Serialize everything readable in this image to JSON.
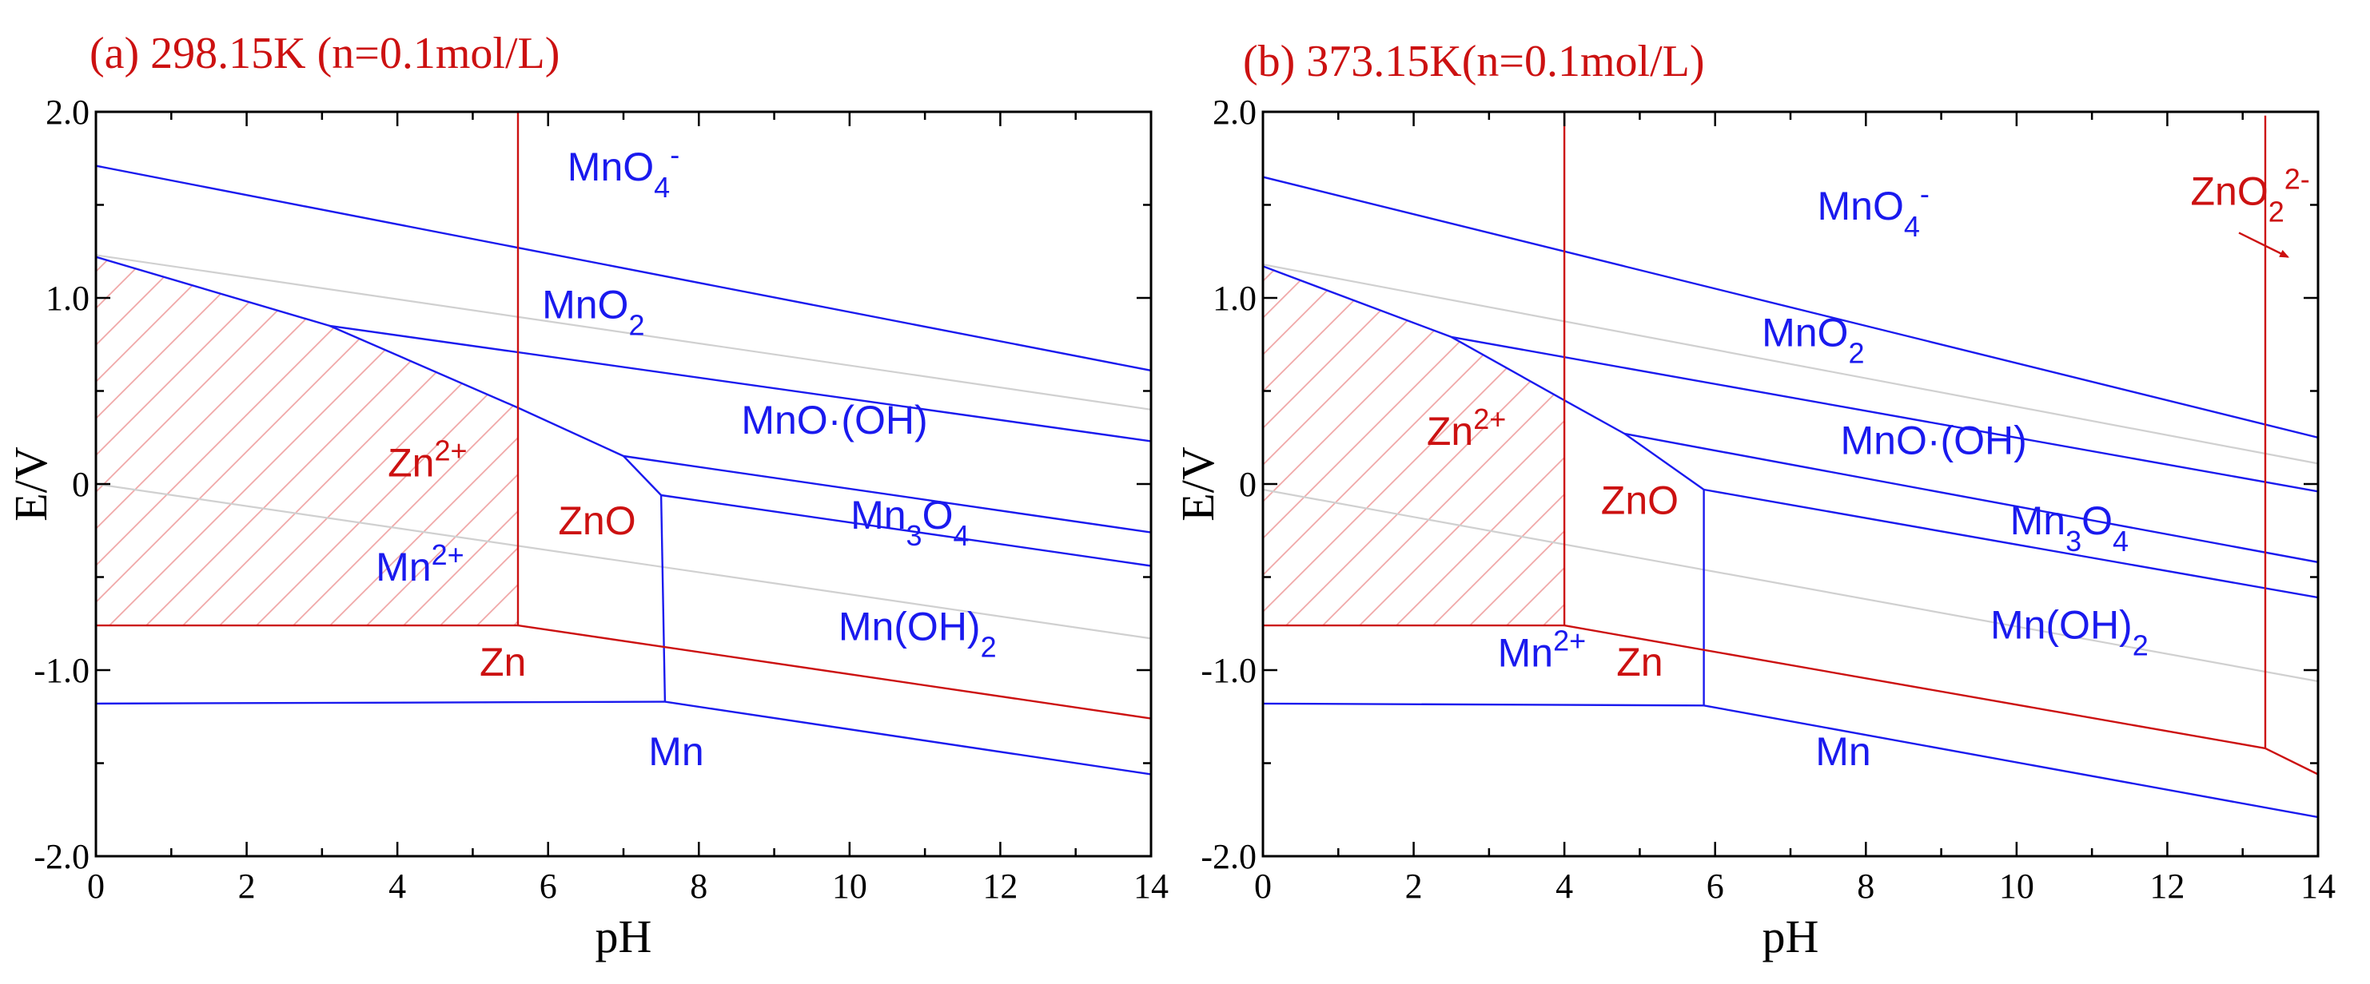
{
  "colors": {
    "blue": "#1a1aee",
    "red": "#cc1111",
    "grey": "#d0d0d0",
    "hatch": "#f0a8a8",
    "axis": "#000000"
  },
  "chart_data": [
    {
      "type": "line",
      "title": "(a) 298.15K (n=0.1mol/L)",
      "xlabel": "pH",
      "ylabel": "E/V",
      "xlim": [
        0,
        14
      ],
      "ylim": [
        -2.0,
        2.0
      ],
      "xticks": [
        0,
        2,
        4,
        6,
        8,
        10,
        12,
        14
      ],
      "xtick_labels": [
        "0",
        "2",
        "4",
        "6",
        "8",
        "10",
        "12",
        "14"
      ],
      "yticks": [
        2.0,
        1.0,
        0,
        -1.0,
        -2.0
      ],
      "ytick_labels": [
        "2.0",
        "1.0",
        "0",
        "-1.0",
        "-2.0"
      ],
      "series": [
        {
          "name": "MnO4-/MnO2",
          "color": "blue",
          "points": [
            [
              0,
              1.71
            ],
            [
              14,
              0.61
            ]
          ]
        },
        {
          "name": "MnO2/Mn2+",
          "color": "blue",
          "points": [
            [
              0,
              1.22
            ],
            [
              3.1,
              0.85
            ],
            [
              5.6,
              0.41
            ],
            [
              7.0,
              0.15
            ],
            [
              7.5,
              -0.06
            ]
          ]
        },
        {
          "name": "MnO2/MnO(OH)",
          "color": "blue",
          "points": [
            [
              3.1,
              0.85
            ],
            [
              14,
              0.23
            ]
          ]
        },
        {
          "name": "MnO(OH)/Mn3O4",
          "color": "blue",
          "points": [
            [
              7.0,
              0.15
            ],
            [
              14,
              -0.26
            ]
          ]
        },
        {
          "name": "Mn3O4/Mn(OH)2",
          "color": "blue",
          "points": [
            [
              7.5,
              -0.06
            ],
            [
              14,
              -0.44
            ]
          ]
        },
        {
          "name": "Mn2+/Mn(OH)2",
          "color": "blue",
          "points": [
            [
              7.5,
              -0.06
            ],
            [
              7.55,
              -1.17
            ]
          ]
        },
        {
          "name": "Mn2+/Mn",
          "color": "blue",
          "points": [
            [
              0,
              -1.18
            ],
            [
              7.55,
              -1.17
            ]
          ]
        },
        {
          "name": "Mn(OH)2/Mn",
          "color": "blue",
          "points": [
            [
              7.55,
              -1.17
            ],
            [
              14,
              -1.56
            ]
          ]
        },
        {
          "name": "Zn2+/ZnO",
          "color": "red",
          "points": [
            [
              5.6,
              2.0
            ],
            [
              5.6,
              -0.76
            ]
          ]
        },
        {
          "name": "Zn2+/Zn",
          "color": "red",
          "points": [
            [
              0,
              -0.76
            ],
            [
              5.6,
              -0.76
            ]
          ]
        },
        {
          "name": "ZnO/Zn",
          "color": "red",
          "points": [
            [
              5.6,
              -0.76
            ],
            [
              14,
              -1.26
            ]
          ]
        },
        {
          "name": "O2/H2O",
          "color": "grey",
          "points": [
            [
              0,
              1.23
            ],
            [
              14,
              0.4
            ]
          ]
        },
        {
          "name": "H+/H2",
          "color": "grey",
          "points": [
            [
              0,
              0
            ],
            [
              14,
              -0.83
            ]
          ]
        }
      ],
      "hatch_region": [
        [
          0,
          -0.76
        ],
        [
          5.6,
          -0.76
        ],
        [
          5.6,
          0.41
        ],
        [
          3.1,
          0.85
        ],
        [
          0,
          1.22
        ]
      ],
      "labels": [
        {
          "text": "MnO",
          "sub": "4",
          "sup": "-",
          "color": "blue",
          "x": 7.0,
          "y": 1.63
        },
        {
          "text": "MnO",
          "sub": "2",
          "sup": "",
          "color": "blue",
          "x": 6.6,
          "y": 0.89
        },
        {
          "text": "MnO·(OH)",
          "sub": "",
          "sup": "",
          "color": "blue",
          "x": 9.8,
          "y": 0.27
        },
        {
          "text": "Mn",
          "sub": "3",
          "sup": "",
          "suffix": "O",
          "sub2": "4",
          "color": "blue",
          "x": 10.8,
          "y": -0.24
        },
        {
          "text": "Mn(OH)",
          "sub": "2",
          "sup": "",
          "color": "blue",
          "x": 10.9,
          "y": -0.84
        },
        {
          "text": "Zn",
          "sub": "",
          "sup": "2+",
          "color": "red",
          "x": 4.4,
          "y": 0.04
        },
        {
          "text": "Mn",
          "sub": "",
          "sup": "2+",
          "color": "blue",
          "x": 4.3,
          "y": -0.52
        },
        {
          "text": "ZnO",
          "sub": "",
          "sup": "",
          "color": "red",
          "x": 6.65,
          "y": -0.27
        },
        {
          "text": "Zn",
          "sub": "",
          "sup": "",
          "color": "red",
          "x": 5.4,
          "y": -1.03
        },
        {
          "text": "Mn",
          "sub": "",
          "sup": "",
          "color": "blue",
          "x": 7.7,
          "y": -1.51
        }
      ]
    },
    {
      "type": "line",
      "title": "(b) 373.15K(n=0.1mol/L)",
      "xlabel": "pH",
      "ylabel": "E/V",
      "xlim": [
        0,
        14
      ],
      "ylim": [
        -2.0,
        2.0
      ],
      "xticks": [
        0,
        2,
        4,
        6,
        8,
        10,
        12,
        14
      ],
      "xtick_labels": [
        "0",
        "2",
        "4",
        "6",
        "8",
        "10",
        "12",
        "14"
      ],
      "yticks": [
        2.0,
        1.0,
        0,
        -1.0,
        -2.0
      ],
      "ytick_labels": [
        "2.0",
        "1.0",
        "0",
        "-1.0",
        "-2.0"
      ],
      "series": [
        {
          "name": "MnO4-/MnO2",
          "color": "blue",
          "points": [
            [
              0,
              1.65
            ],
            [
              14,
              0.25
            ]
          ]
        },
        {
          "name": "MnO2/Mn2+",
          "color": "blue",
          "points": [
            [
              0,
              1.17
            ],
            [
              2.5,
              0.79
            ],
            [
              4.0,
              0.45
            ],
            [
              4.8,
              0.27
            ],
            [
              5.85,
              -0.03
            ]
          ]
        },
        {
          "name": "MnO2/MnO(OH)",
          "color": "blue",
          "points": [
            [
              2.5,
              0.79
            ],
            [
              14,
              -0.04
            ]
          ]
        },
        {
          "name": "MnO(OH)/Mn3O4",
          "color": "blue",
          "points": [
            [
              4.8,
              0.27
            ],
            [
              14,
              -0.42
            ]
          ]
        },
        {
          "name": "Mn3O4/Mn(OH)2",
          "color": "blue",
          "points": [
            [
              5.85,
              -0.03
            ],
            [
              14,
              -0.61
            ]
          ]
        },
        {
          "name": "Mn2+/Mn(OH)2",
          "color": "blue",
          "points": [
            [
              5.85,
              -0.03
            ],
            [
              5.85,
              -1.19
            ]
          ]
        },
        {
          "name": "Mn2+/Mn",
          "color": "blue",
          "points": [
            [
              0,
              -1.18
            ],
            [
              5.85,
              -1.19
            ]
          ]
        },
        {
          "name": "Mn(OH)2/Mn",
          "color": "blue",
          "points": [
            [
              5.85,
              -1.19
            ],
            [
              14,
              -1.79
            ]
          ]
        },
        {
          "name": "Zn2+/ZnO",
          "color": "red",
          "points": [
            [
              4.0,
              2.0
            ],
            [
              4.0,
              -0.76
            ]
          ]
        },
        {
          "name": "Zn2+/Zn",
          "color": "red",
          "points": [
            [
              0,
              -0.76
            ],
            [
              4.0,
              -0.76
            ]
          ]
        },
        {
          "name": "ZnO/Zn",
          "color": "red",
          "points": [
            [
              4.0,
              -0.76
            ],
            [
              13.3,
              -1.42
            ]
          ]
        },
        {
          "name": "ZnO/ZnO2 2-",
          "color": "red",
          "points": [
            [
              13.3,
              1.98
            ],
            [
              13.3,
              -1.42
            ]
          ]
        },
        {
          "name": "ZnO2 2-/Zn",
          "color": "red",
          "points": [
            [
              13.3,
              -1.42
            ],
            [
              14,
              -1.56
            ]
          ]
        },
        {
          "name": "O2/H2O",
          "color": "grey",
          "points": [
            [
              0,
              1.18
            ],
            [
              14,
              0.11
            ]
          ]
        },
        {
          "name": "H+/H2",
          "color": "grey",
          "points": [
            [
              0,
              -0.03
            ],
            [
              14,
              -1.06
            ]
          ]
        }
      ],
      "hatch_region": [
        [
          0,
          -0.76
        ],
        [
          4.0,
          -0.76
        ],
        [
          4.0,
          0.45
        ],
        [
          2.5,
          0.79
        ],
        [
          0,
          1.17
        ]
      ],
      "arrow": {
        "from": [
          12.95,
          1.35
        ],
        "to": [
          13.6,
          1.22
        ],
        "color": "red"
      },
      "labels": [
        {
          "text": "MnO",
          "sub": "4",
          "sup": "-",
          "color": "blue",
          "x": 8.1,
          "y": 1.42
        },
        {
          "text": "ZnO",
          "sub": "2",
          "sup": "2-",
          "color": "red",
          "x": 13.1,
          "y": 1.5
        },
        {
          "text": "MnO",
          "sub": "2",
          "sup": "",
          "color": "blue",
          "x": 7.3,
          "y": 0.74
        },
        {
          "text": "MnO·(OH)",
          "sub": "",
          "sup": "",
          "color": "blue",
          "x": 8.9,
          "y": 0.16
        },
        {
          "text": "Mn",
          "sub": "3",
          "sup": "",
          "suffix": "O",
          "sub2": "4",
          "color": "blue",
          "x": 10.7,
          "y": -0.27
        },
        {
          "text": "Mn(OH)",
          "sub": "2",
          "sup": "",
          "color": "blue",
          "x": 10.7,
          "y": -0.83
        },
        {
          "text": "Zn",
          "sub": "",
          "sup": "2+",
          "color": "red",
          "x": 2.7,
          "y": 0.21
        },
        {
          "text": "ZnO",
          "sub": "",
          "sup": "",
          "color": "red",
          "x": 5.0,
          "y": -0.16
        },
        {
          "text": "Mn",
          "sub": "",
          "sup": "2+",
          "color": "blue",
          "x": 3.7,
          "y": -0.98
        },
        {
          "text": "Zn",
          "sub": "",
          "sup": "",
          "color": "red",
          "x": 5.0,
          "y": -1.03
        },
        {
          "text": "Mn",
          "sub": "",
          "sup": "",
          "color": "blue",
          "x": 7.7,
          "y": -1.51
        }
      ]
    }
  ]
}
